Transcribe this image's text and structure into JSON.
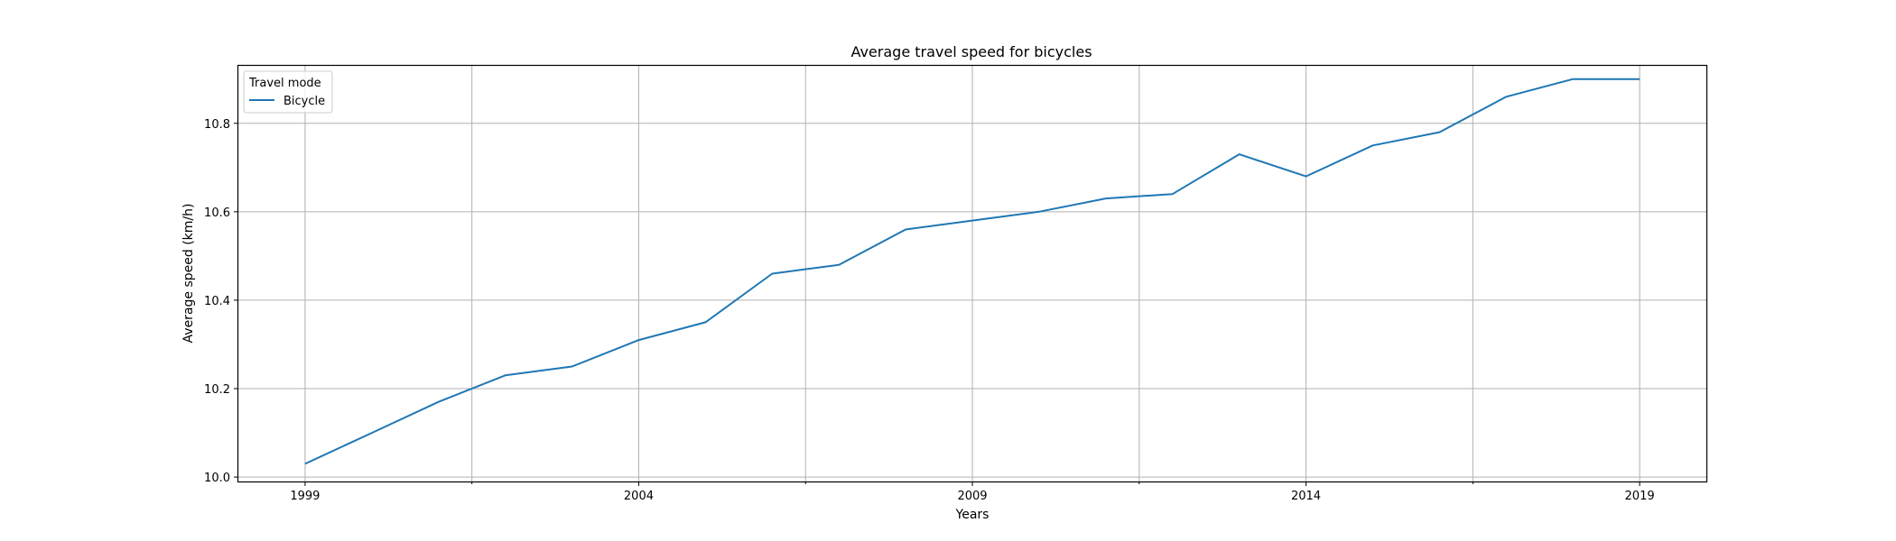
{
  "chart_data": {
    "type": "line",
    "title": "Average travel speed for bicycles",
    "xlabel": "Years",
    "ylabel": "Average speed (km/h)",
    "x": [
      1999,
      2000,
      2001,
      2002,
      2003,
      2004,
      2005,
      2006,
      2007,
      2008,
      2009,
      2010,
      2011,
      2012,
      2013,
      2014,
      2015,
      2016,
      2017,
      2018,
      2019
    ],
    "series": [
      {
        "name": "Bicycle",
        "color": "#1f77b4",
        "values": [
          10.03,
          10.1,
          10.17,
          10.23,
          10.25,
          10.31,
          10.35,
          10.46,
          10.48,
          10.56,
          10.58,
          10.6,
          10.63,
          10.64,
          10.73,
          10.68,
          10.75,
          10.78,
          10.86,
          10.9,
          10.9
        ]
      }
    ],
    "xlim": [
      1998,
      2020
    ],
    "ylim": [
      9.99,
      10.93
    ],
    "xticks": [
      1999,
      2004,
      2009,
      2014,
      2019
    ],
    "xticks_minor": [
      2001.5,
      2006.5,
      2011.5,
      2016.5
    ],
    "yticks": [
      10.0,
      10.2,
      10.4,
      10.6,
      10.8
    ],
    "ytick_labels": [
      "10.0",
      "10.2",
      "10.4",
      "10.6",
      "10.8"
    ],
    "grid": true,
    "legend": {
      "title": "Travel mode",
      "placement": "top-left"
    }
  }
}
